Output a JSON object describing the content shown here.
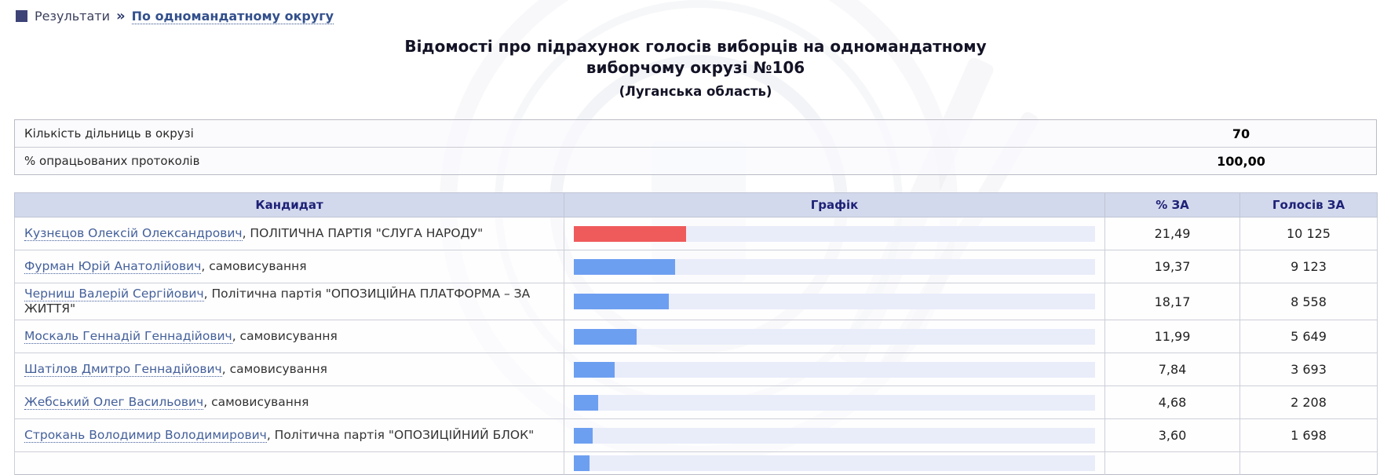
{
  "breadcrumb": {
    "section": "Результати",
    "separator": "»",
    "link": "По одномандатному округу"
  },
  "title": {
    "line1": "Відомості про підрахунок голосів виборців на одномандатному",
    "line2": "виборчому окрузі №106",
    "region": "(Луганська область)"
  },
  "summary": {
    "rows": [
      {
        "label": "Кількість дільниць в окрузі",
        "value": "70"
      },
      {
        "label": "% опрацьованих протоколів",
        "value": "100,00"
      }
    ]
  },
  "results_table": {
    "headers": {
      "candidate": "Кандидат",
      "chart": "Графік",
      "percent": "% ЗА",
      "votes": "Голосів ЗА"
    },
    "rows": [
      {
        "name": "Кузнєцов Олексій Олександрович",
        "affiliation": ", ПОЛІТИЧНА ПАРТІЯ \"СЛУГА НАРОДУ\"",
        "percent": "21,49",
        "votes": "10 125",
        "bar_percent": 21.49,
        "bar_color": "#ef5b5b"
      },
      {
        "name": "Фурман Юрій Анатолійович",
        "affiliation": ", самовисування",
        "percent": "19,37",
        "votes": "9 123",
        "bar_percent": 19.37,
        "bar_color": "#6d9ff1"
      },
      {
        "name": "Черниш Валерій Сергійович",
        "affiliation": ", Політична партія \"ОПОЗИЦІЙНА ПЛАТФОРМА – ЗА ЖИТТЯ\"",
        "percent": "18,17",
        "votes": "8 558",
        "bar_percent": 18.17,
        "bar_color": "#6d9ff1"
      },
      {
        "name": "Москаль Геннадій Геннадійович",
        "affiliation": ", самовисування",
        "percent": "11,99",
        "votes": "5 649",
        "bar_percent": 11.99,
        "bar_color": "#6d9ff1"
      },
      {
        "name": "Шатілов Дмитро Геннадійович",
        "affiliation": ", самовисування",
        "percent": "7,84",
        "votes": "3 693",
        "bar_percent": 7.84,
        "bar_color": "#6d9ff1"
      },
      {
        "name": "Жебський Олег Васильович",
        "affiliation": ", самовисування",
        "percent": "4,68",
        "votes": "2 208",
        "bar_percent": 4.68,
        "bar_color": "#6d9ff1"
      },
      {
        "name": "Строкань Володимир Володимирович",
        "affiliation": ", Політична партія \"ОПОЗИЦІЙНИЙ БЛОК\"",
        "percent": "3,60",
        "votes": "1 698",
        "bar_percent": 3.6,
        "bar_color": "#6d9ff1"
      }
    ],
    "partial_row": {
      "bar_percent": 3,
      "bar_color": "#6d9ff1"
    }
  },
  "colors": {
    "leader_bar": "#ef5b5b",
    "default_bar": "#6d9ff1",
    "bar_track": "#e9ecf9",
    "header_bg": "#d3d9ec",
    "header_text": "#1e2277",
    "link": "#44609a"
  }
}
